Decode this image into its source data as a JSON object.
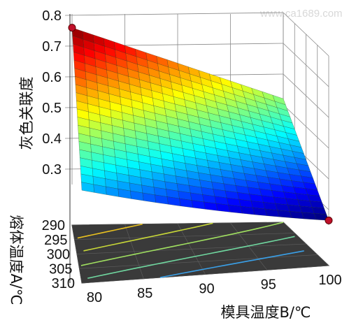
{
  "chart_data": {
    "type": "surface",
    "title": "",
    "xlabel": "模具温度B/℃",
    "ylabel": "熔体温度A/℃",
    "zlabel": "灰色关联度",
    "x_ticks": [
      "80",
      "85",
      "90",
      "95",
      "100"
    ],
    "y_ticks": [
      "290",
      "295",
      "300",
      "305",
      "310"
    ],
    "z_ticks": [
      "0.3",
      "0.4",
      "0.5",
      "0.6",
      "0.7",
      "0.8"
    ],
    "xlim": [
      80,
      100
    ],
    "ylim": [
      290,
      310
    ],
    "zlim": [
      0.25,
      0.8
    ],
    "grid": true,
    "colormap": "jet",
    "surface_corners": [
      {
        "x": 80,
        "y": 290,
        "z": 0.76
      },
      {
        "x": 100,
        "y": 290,
        "z": 0.52
      },
      {
        "x": 80,
        "y": 310,
        "z": 0.42
      },
      {
        "x": 100,
        "y": 310,
        "z": 0.265
      }
    ],
    "marked_points": [
      {
        "x": 80,
        "y": 290,
        "z": 0.76,
        "color": "#c0102a"
      },
      {
        "x": 100,
        "y": 310,
        "z": 0.265,
        "color": "#c0102a"
      }
    ],
    "contour_colors": [
      "#e8c020",
      "#c8d838",
      "#a0e060",
      "#70d8a0",
      "#3aa0e8"
    ]
  },
  "watermark": "www.ca1689.com"
}
